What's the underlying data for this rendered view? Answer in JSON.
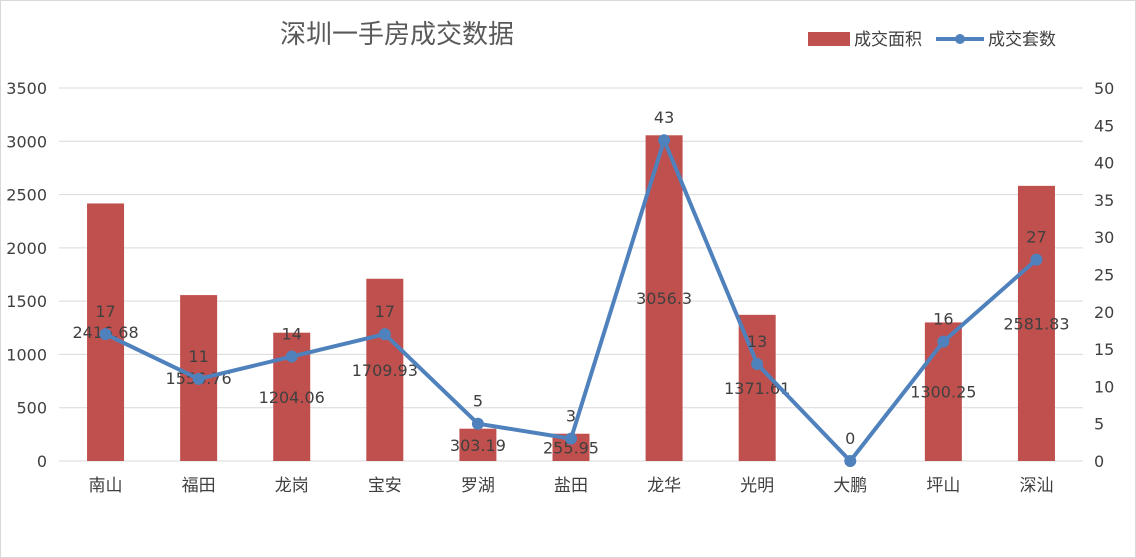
{
  "chart_data": {
    "type": "bar",
    "title": "深圳一手房成交数据",
    "categories": [
      "南山",
      "福田",
      "龙岗",
      "宝安",
      "罗湖",
      "盐田",
      "龙华",
      "光明",
      "大鹏",
      "坪山",
      "深汕"
    ],
    "series": [
      {
        "name": "成交面积",
        "type": "bar",
        "axis": "left",
        "color": "#c0504d",
        "values": [
          2416.68,
          1556.76,
          1204.06,
          1709.93,
          303.19,
          255.95,
          3056.3,
          1371.61,
          0,
          1300.25,
          2581.83
        ],
        "labels": [
          "2416.68",
          "1556.76",
          "1204.06",
          "1709.93",
          "303.19",
          "255.95",
          "3056.3",
          "1371.61",
          "0",
          "1300.25",
          "2581.83"
        ]
      },
      {
        "name": "成交套数",
        "type": "line",
        "axis": "right",
        "color": "#4f81bd",
        "values": [
          17,
          11,
          14,
          17,
          5,
          3,
          43,
          13,
          0,
          16,
          27
        ],
        "labels": [
          "17",
          "11",
          "14",
          "17",
          "5",
          "3",
          "43",
          "13",
          "0",
          "16",
          "27"
        ]
      }
    ],
    "y_left": {
      "min": 0,
      "max": 3500,
      "ticks": [
        "0",
        "500",
        "1000",
        "1500",
        "2000",
        "2500",
        "3000",
        "3500"
      ]
    },
    "y_right": {
      "min": 0,
      "max": 50,
      "ticks": [
        "0",
        "5",
        "10",
        "15",
        "20",
        "25",
        "30",
        "35",
        "40",
        "45",
        "50"
      ]
    },
    "grid": true,
    "legend_position": "top-right",
    "gridline_color": "#d9d9d9"
  }
}
